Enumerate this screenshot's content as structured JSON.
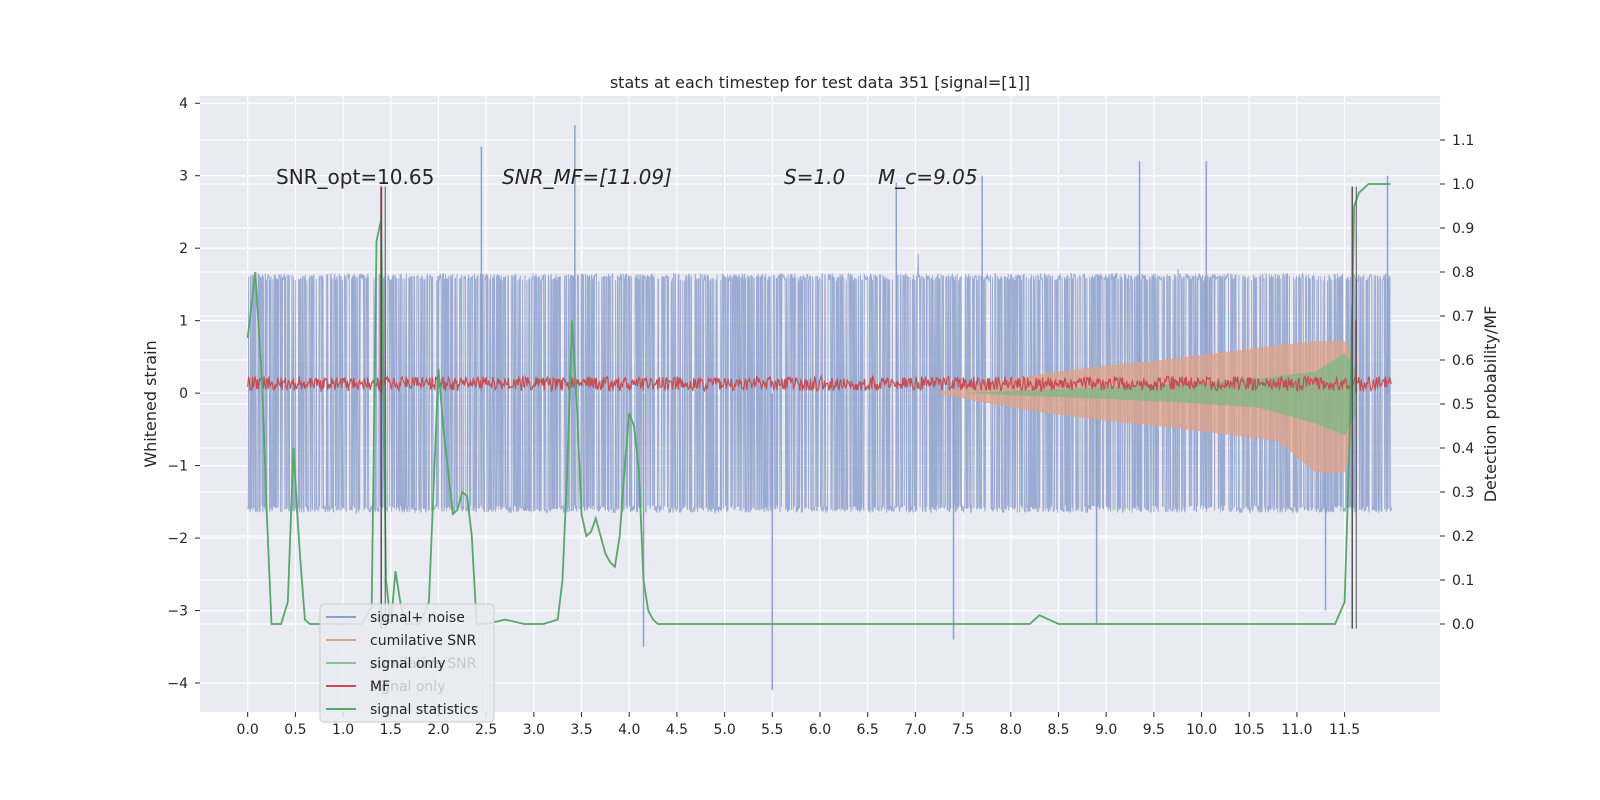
{
  "chart_data": {
    "type": "line",
    "title": "stats at each timestep for test data 351 [signal=[1]]",
    "xlabel": "",
    "ylabel": "Whitened strain",
    "y2label": "Detection probability/MF",
    "xlim": [
      -0.5,
      12.5
    ],
    "ylim": [
      -4.4,
      4.1
    ],
    "y2lim": [
      -0.2,
      1.2
    ],
    "x_ticks": [
      0.0,
      0.5,
      1.0,
      1.5,
      2.0,
      2.5,
      3.0,
      3.5,
      4.0,
      4.5,
      5.0,
      5.5,
      6.0,
      6.5,
      7.0,
      7.5,
      8.0,
      8.5,
      9.0,
      9.5,
      10.0,
      10.5,
      11.0,
      11.5
    ],
    "x_tick_labels": [
      "0.0",
      "0.5",
      "1.0",
      "1.5",
      "2.0",
      "2.5",
      "3.0",
      "3.5",
      "4.0",
      "4.5",
      "5.0",
      "5.5",
      "6.0",
      "6.5",
      "7.0",
      "7.5",
      "8.0",
      "8.5",
      "9.0",
      "9.5",
      "10.0",
      "10.5",
      "11.0",
      "11.5"
    ],
    "y_ticks": [
      -4,
      -3,
      -2,
      -1,
      0,
      1,
      2,
      3,
      4
    ],
    "y_tick_labels": [
      "−4",
      "−3",
      "−2",
      "−1",
      "0",
      "1",
      "2",
      "3",
      "4"
    ],
    "y2_ticks": [
      0.0,
      0.1,
      0.2,
      0.3,
      0.4,
      0.5,
      0.6,
      0.7,
      0.8,
      0.9,
      1.0,
      1.1
    ],
    "y2_tick_labels": [
      "0.0",
      "0.1",
      "0.2",
      "0.3",
      "0.4",
      "0.5",
      "0.6",
      "0.7",
      "0.8",
      "0.9",
      "1.0",
      "1.1"
    ],
    "grid": true,
    "legend_position": "lower-left",
    "legend": [
      {
        "label": "signal+ noise",
        "color": "#8da0cb"
      },
      {
        "label": "cumilative SNR",
        "color": "#e1a184"
      },
      {
        "label": "cumilative SNR",
        "color": "#d0d0d0",
        "ghost": true
      },
      {
        "label": "signal only",
        "color": "#88c495"
      },
      {
        "label": "MF",
        "color": "#c44e52"
      },
      {
        "label": "signal only",
        "color": "#d0d0d0",
        "ghost": true
      },
      {
        "label": "signal statistics",
        "color": "#55a868"
      }
    ],
    "annotations": {
      "snr_opt": "SNR_opt=10.65",
      "snr_mf": "SNR_MF=[11.09]",
      "s_value": "S=1.0",
      "mc_value": "M_c=9.05"
    },
    "noise_series": {
      "name": "signal+ noise",
      "x_range": [
        0.0,
        11.99
      ],
      "typical_abs_max": 2.0,
      "spikes": [
        {
          "x": 2.45,
          "y": 3.4
        },
        {
          "x": 3.43,
          "y": 3.7
        },
        {
          "x": 5.5,
          "y": -4.1
        },
        {
          "x": 7.4,
          "y": -3.4
        },
        {
          "x": 9.35,
          "y": 3.2
        },
        {
          "x": 10.05,
          "y": 3.2
        },
        {
          "x": 11.95,
          "y": 3.0
        },
        {
          "x": 4.15,
          "y": -3.5
        },
        {
          "x": 8.9,
          "y": -3.2
        },
        {
          "x": 11.3,
          "y": -3.0
        },
        {
          "x": 7.7,
          "y": 3.0
        },
        {
          "x": 6.8,
          "y": 2.9
        }
      ]
    },
    "cumulative_snr": {
      "name": "cumilative SNR",
      "x": [
        7.2,
        7.8,
        8.4,
        9.0,
        9.6,
        10.2,
        10.8,
        11.2,
        11.5,
        11.6
      ],
      "upper": [
        0.0,
        0.15,
        0.28,
        0.38,
        0.46,
        0.56,
        0.66,
        0.72,
        0.72,
        0.5
      ],
      "lower": [
        0.0,
        -0.15,
        -0.28,
        -0.38,
        -0.46,
        -0.56,
        -0.66,
        -1.1,
        -1.1,
        -0.5
      ]
    },
    "signal_only": {
      "name": "signal only",
      "x": [
        7.5,
        8.2,
        9.0,
        9.8,
        10.6,
        11.2,
        11.5,
        11.62
      ],
      "upper": [
        0.0,
        0.04,
        0.08,
        0.13,
        0.2,
        0.3,
        0.55,
        0.3
      ],
      "lower": [
        0.0,
        -0.04,
        -0.08,
        -0.13,
        -0.2,
        -0.42,
        -0.58,
        -0.3
      ]
    },
    "mf_series": {
      "name": "MF",
      "x_range": [
        0.0,
        11.99
      ],
      "baseline": 0.13,
      "amplitude": 0.1,
      "peaks": [
        {
          "x": 1.4,
          "y": 2.85
        },
        {
          "x": 11.62,
          "y": 1.0
        }
      ]
    },
    "signal_statistics": {
      "name": "signal statistics",
      "x": [
        0.0,
        0.08,
        0.15,
        0.2,
        0.25,
        0.3,
        0.35,
        0.42,
        0.48,
        0.52,
        0.55,
        0.6,
        0.65,
        0.7,
        0.8,
        1.0,
        1.2,
        1.3,
        1.35,
        1.4,
        1.45,
        1.5,
        1.55,
        1.6,
        1.65,
        1.7,
        1.8,
        1.9,
        2.0,
        2.05,
        2.1,
        2.15,
        2.2,
        2.25,
        2.3,
        2.35,
        2.4,
        2.45,
        2.5,
        2.7,
        2.9,
        3.1,
        3.25,
        3.3,
        3.35,
        3.4,
        3.45,
        3.5,
        3.55,
        3.6,
        3.65,
        3.7,
        3.75,
        3.8,
        3.85,
        3.9,
        3.95,
        4.0,
        4.05,
        4.1,
        4.15,
        4.2,
        4.25,
        4.3,
        4.35,
        4.4,
        4.5,
        5.0,
        5.3,
        5.5,
        5.7,
        6.0,
        6.5,
        7.0,
        7.5,
        8.0,
        8.2,
        8.3,
        8.4,
        8.5,
        9.0,
        10.0,
        11.0,
        11.4,
        11.5,
        11.55,
        11.6,
        11.65,
        11.7,
        11.75,
        11.8,
        11.9,
        11.98
      ],
      "y": [
        0.65,
        0.8,
        0.55,
        0.25,
        0.0,
        0.0,
        0.0,
        0.05,
        0.4,
        0.25,
        0.15,
        0.01,
        0.0,
        0.0,
        0.0,
        0.0,
        0.0,
        0.04,
        0.87,
        0.92,
        0.1,
        0.0,
        0.12,
        0.05,
        0.0,
        0.0,
        0.0,
        0.05,
        0.58,
        0.45,
        0.35,
        0.25,
        0.26,
        0.3,
        0.29,
        0.2,
        0.0,
        0.0,
        0.0,
        0.01,
        0.0,
        0.0,
        0.01,
        0.1,
        0.35,
        0.69,
        0.5,
        0.25,
        0.2,
        0.21,
        0.24,
        0.2,
        0.16,
        0.14,
        0.13,
        0.2,
        0.35,
        0.48,
        0.45,
        0.35,
        0.1,
        0.03,
        0.01,
        0.0,
        0.0,
        0.0,
        0.0,
        0.0,
        0.0,
        0.0,
        0.0,
        0.0,
        0.0,
        0.0,
        0.0,
        0.0,
        0.0,
        0.02,
        0.01,
        0.0,
        0.0,
        0.0,
        0.0,
        0.0,
        0.05,
        0.4,
        0.95,
        0.98,
        0.99,
        1.0,
        1.0,
        1.0,
        1.0
      ]
    },
    "vertical_lines": [
      1.4,
      11.58
    ]
  }
}
